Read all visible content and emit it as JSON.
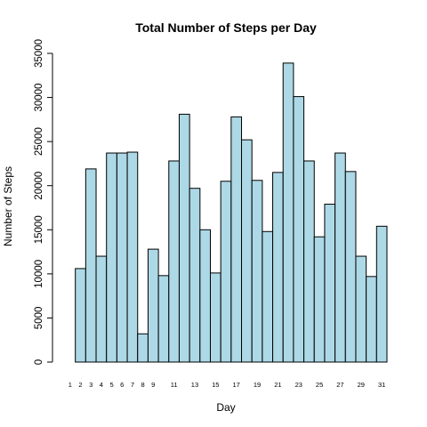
{
  "chart_data": {
    "type": "bar",
    "title": "Total Number of Steps per Day",
    "xlabel": "Day",
    "ylabel": "Number of Steps",
    "categories": [
      1,
      2,
      3,
      4,
      5,
      6,
      7,
      8,
      9,
      10,
      11,
      12,
      13,
      14,
      15,
      16,
      17,
      18,
      19,
      20,
      21,
      22,
      23,
      24,
      25,
      26,
      27,
      28,
      29,
      30,
      31
    ],
    "x_tick_labels": [
      "1",
      "2",
      "3",
      "4",
      "5",
      "6",
      "7",
      "8",
      "9",
      "11",
      "13",
      "15",
      "17",
      "19",
      "21",
      "23",
      "25",
      "27",
      "29",
      "31"
    ],
    "values": [
      0,
      10600,
      21900,
      12000,
      23700,
      23700,
      23800,
      3200,
      12800,
      9800,
      22800,
      28100,
      19700,
      15000,
      10100,
      20500,
      27800,
      25200,
      20600,
      14800,
      21500,
      33900,
      30100,
      22800,
      14200,
      17900,
      23700,
      21600,
      12000,
      9700,
      15400
    ],
    "yticks": [
      0,
      5000,
      10000,
      15000,
      20000,
      25000,
      30000,
      35000
    ],
    "ylim": [
      0,
      35000
    ],
    "bar_color": "#add8e6",
    "grid": false,
    "legend": "none"
  }
}
